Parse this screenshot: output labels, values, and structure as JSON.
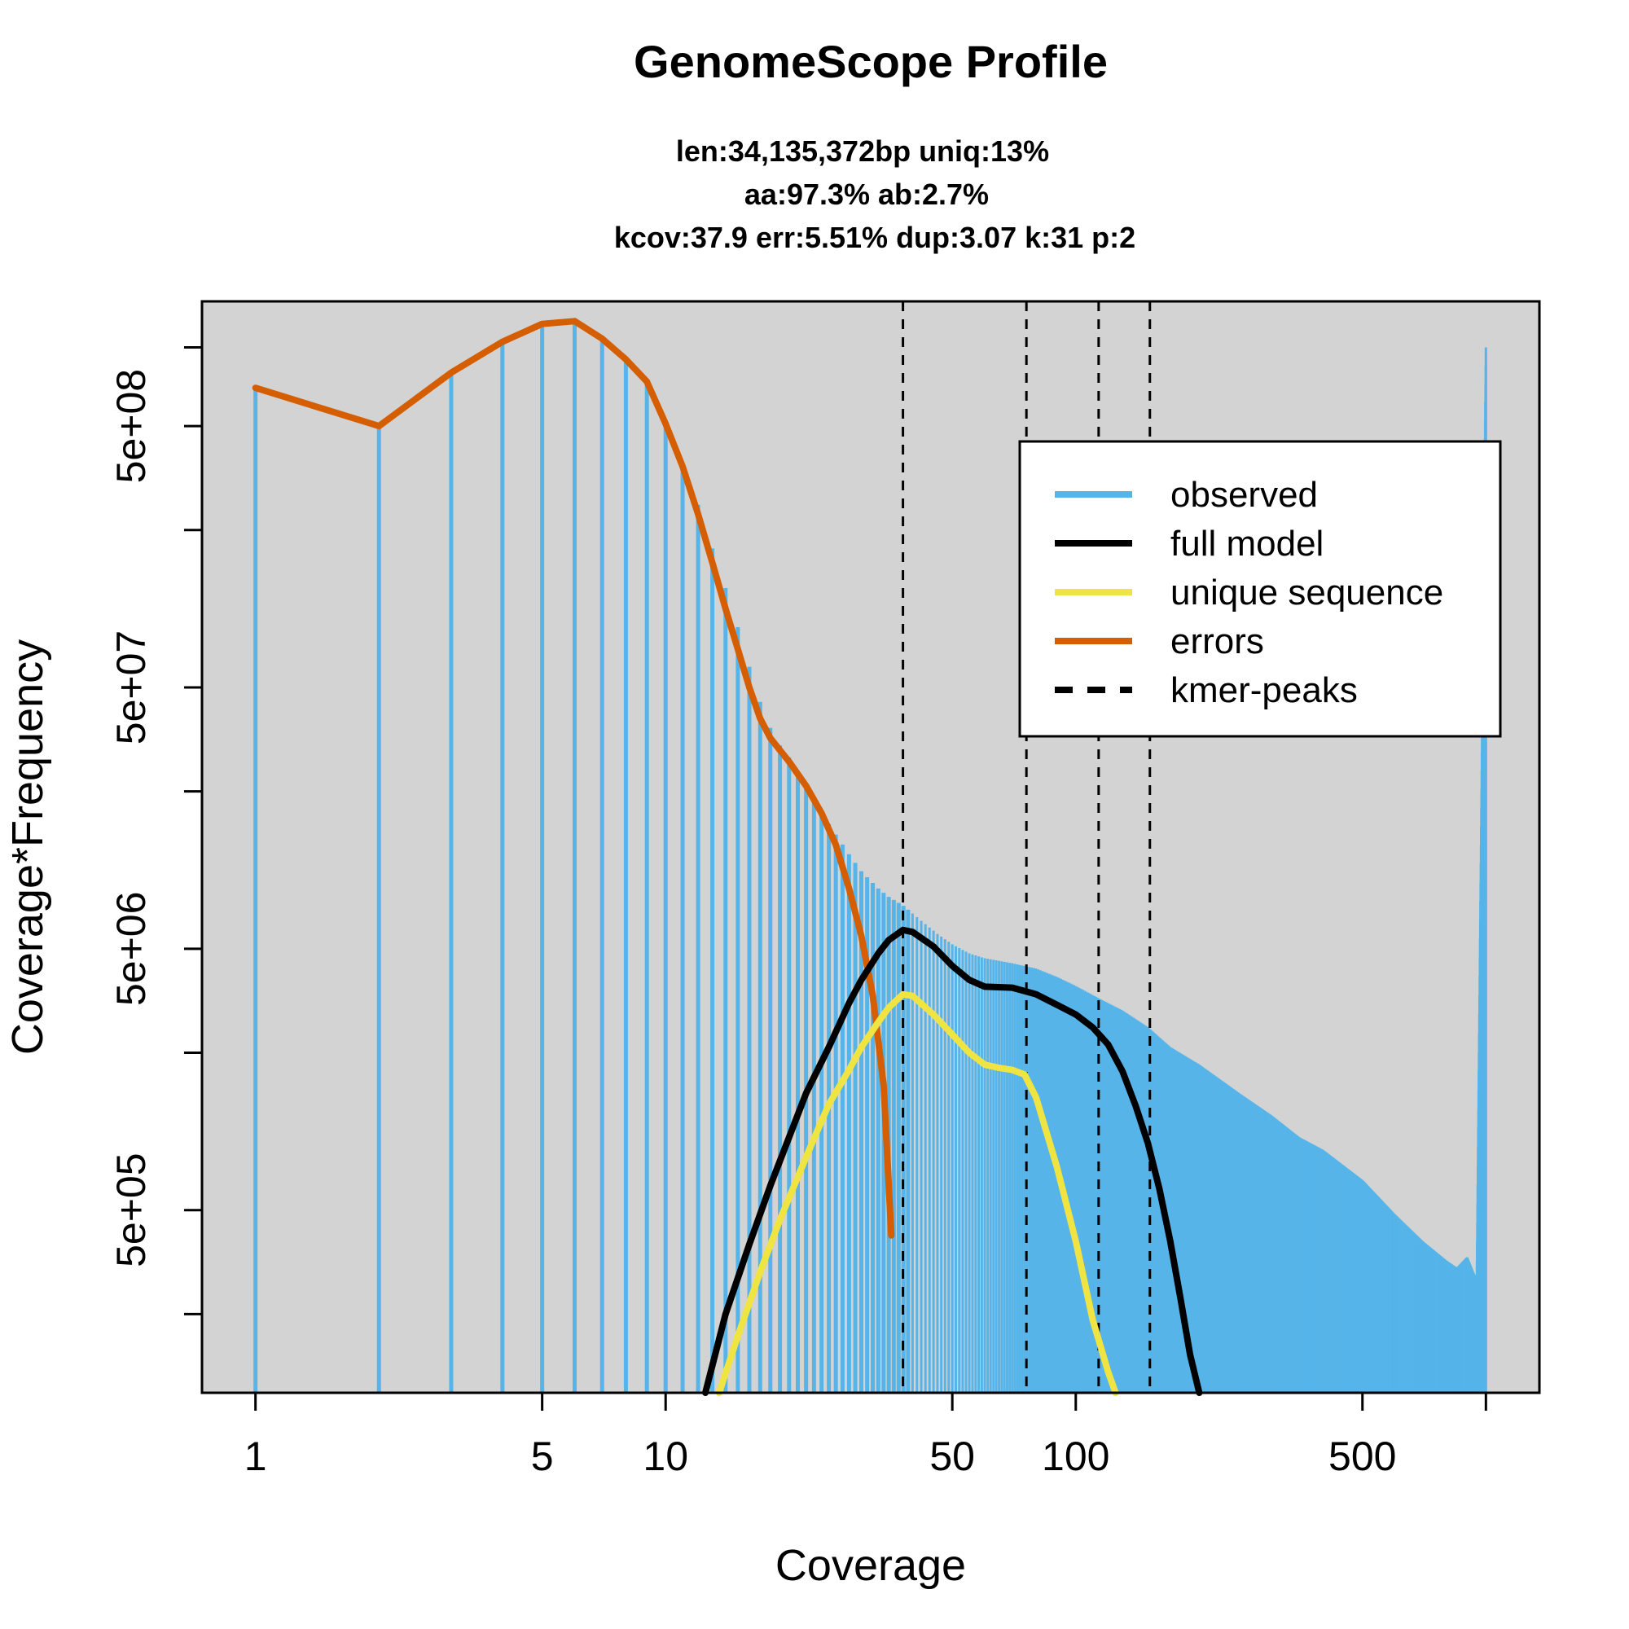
{
  "chart_data": {
    "type": "area",
    "title": "GenomeScope Profile",
    "subtitle_lines": [
      "len:34,135,372bp uniq:13%",
      "aa:97.3% ab:2.7%",
      "kcov:37.9 err:5.51%  dup:3.07  k:31 p:2"
    ],
    "xlabel": "Coverage",
    "ylabel": "Coverage*Frequency",
    "x_scale": "log",
    "y_scale": "log",
    "xlim": [
      1,
      1000
    ],
    "ylim": [
      100000,
      1500000000
    ],
    "x_ticks": [
      1,
      5,
      10,
      50,
      100,
      500,
      1000
    ],
    "x_tick_labels": [
      "1",
      "5",
      "10",
      "50",
      "100",
      "500",
      ""
    ],
    "y_ticks": [
      200000,
      500000,
      2000000,
      5000000,
      20000000,
      50000000,
      200000000,
      500000000,
      1000000000
    ],
    "y_tick_labels": [
      "",
      "5e+05",
      "",
      "5e+06",
      "",
      "5e+07",
      "",
      "5e+08",
      ""
    ],
    "colors": {
      "observed": "#56b4e9",
      "full_model": "#000000",
      "unique_sequence": "#f0e442",
      "errors": "#d55e00",
      "kmer_peaks": "#000000",
      "plot_background": "#d3d3d3"
    },
    "kmer_peaks": [
      37.9,
      75.8,
      113.7,
      151.6
    ],
    "observed": {
      "name": "observed",
      "points": [
        [
          1,
          700000000
        ],
        [
          2,
          500000000
        ],
        [
          3,
          800000000
        ],
        [
          4,
          1050000000
        ],
        [
          5,
          1230000000
        ],
        [
          6,
          1260000000
        ],
        [
          7,
          1080000000
        ],
        [
          8,
          900000000
        ],
        [
          9,
          740000000
        ],
        [
          10,
          510000000
        ],
        [
          11,
          360000000
        ],
        [
          12,
          250000000
        ],
        [
          13,
          170000000
        ],
        [
          14,
          120000000
        ],
        [
          15,
          85000000
        ],
        [
          16,
          60000000
        ],
        [
          17,
          44000000
        ],
        [
          18,
          35000000
        ],
        [
          19,
          30000000
        ],
        [
          20,
          27000000
        ],
        [
          22,
          21000000
        ],
        [
          25,
          15000000
        ],
        [
          28,
          11500000
        ],
        [
          30,
          9900000
        ],
        [
          33,
          8500000
        ],
        [
          35,
          7900000
        ],
        [
          38,
          7300000
        ],
        [
          42,
          6400000
        ],
        [
          46,
          5700000
        ],
        [
          50,
          5200000
        ],
        [
          55,
          4800000
        ],
        [
          60,
          4600000
        ],
        [
          70,
          4400000
        ],
        [
          80,
          4200000
        ],
        [
          90,
          3900000
        ],
        [
          100,
          3600000
        ],
        [
          115,
          3200000
        ],
        [
          130,
          2900000
        ],
        [
          150,
          2500000
        ],
        [
          170,
          2100000
        ],
        [
          200,
          1800000
        ],
        [
          250,
          1400000
        ],
        [
          300,
          1150000
        ],
        [
          350,
          950000
        ],
        [
          400,
          850000
        ],
        [
          500,
          650000
        ],
        [
          600,
          480000
        ],
        [
          700,
          380000
        ],
        [
          800,
          320000
        ],
        [
          850,
          300000
        ],
        [
          900,
          330000
        ],
        [
          930,
          290000
        ],
        [
          950,
          270000
        ],
        [
          1000,
          1000000000
        ]
      ]
    },
    "full_model": {
      "name": "full model",
      "points": [
        [
          12.5,
          100000
        ],
        [
          14,
          200000
        ],
        [
          16,
          370000
        ],
        [
          18,
          620000
        ],
        [
          20,
          950000
        ],
        [
          22,
          1400000
        ],
        [
          25,
          2100000
        ],
        [
          28,
          3100000
        ],
        [
          30,
          3800000
        ],
        [
          33,
          4800000
        ],
        [
          35,
          5400000
        ],
        [
          37.9,
          5900000
        ],
        [
          40,
          5800000
        ],
        [
          45,
          5100000
        ],
        [
          50,
          4300000
        ],
        [
          55,
          3800000
        ],
        [
          60,
          3580000
        ],
        [
          70,
          3550000
        ],
        [
          80,
          3350000
        ],
        [
          90,
          3050000
        ],
        [
          100,
          2800000
        ],
        [
          110,
          2500000
        ],
        [
          120,
          2150000
        ],
        [
          130,
          1700000
        ],
        [
          140,
          1250000
        ],
        [
          150,
          900000
        ],
        [
          160,
          600000
        ],
        [
          170,
          380000
        ],
        [
          180,
          230000
        ],
        [
          190,
          140000
        ],
        [
          200,
          100000
        ]
      ]
    },
    "unique_sequence": {
      "name": "unique sequence",
      "points": [
        [
          13.5,
          100000
        ],
        [
          15,
          165000
        ],
        [
          17,
          290000
        ],
        [
          19,
          460000
        ],
        [
          21,
          670000
        ],
        [
          23,
          940000
        ],
        [
          25,
          1270000
        ],
        [
          28,
          1720000
        ],
        [
          30,
          2100000
        ],
        [
          33,
          2620000
        ],
        [
          35,
          2980000
        ],
        [
          37.9,
          3350000
        ],
        [
          40,
          3300000
        ],
        [
          45,
          2800000
        ],
        [
          50,
          2350000
        ],
        [
          55,
          2000000
        ],
        [
          60,
          1800000
        ],
        [
          65,
          1750000
        ],
        [
          70,
          1720000
        ],
        [
          75,
          1650000
        ],
        [
          80,
          1350000
        ],
        [
          90,
          730000
        ],
        [
          100,
          380000
        ],
        [
          110,
          190000
        ],
        [
          120,
          120000
        ],
        [
          125,
          100000
        ]
      ]
    },
    "errors": {
      "name": "errors",
      "points": [
        [
          1,
          700000000
        ],
        [
          2,
          500000000
        ],
        [
          3,
          800000000
        ],
        [
          4,
          1050000000
        ],
        [
          5,
          1230000000
        ],
        [
          6,
          1260000000
        ],
        [
          7,
          1080000000
        ],
        [
          8,
          900000000
        ],
        [
          9,
          740000000
        ],
        [
          10,
          510000000
        ],
        [
          11,
          350000000
        ],
        [
          12,
          230000000
        ],
        [
          13,
          150000000
        ],
        [
          14,
          100000000
        ],
        [
          15,
          70000000
        ],
        [
          16,
          50000000
        ],
        [
          17,
          38000000
        ],
        [
          18,
          32000000
        ],
        [
          20,
          26000000
        ],
        [
          22,
          21000000
        ],
        [
          24,
          16500000
        ],
        [
          26,
          12500000
        ],
        [
          28,
          8500000
        ],
        [
          30,
          5600000
        ],
        [
          32,
          3300000
        ],
        [
          34,
          1500000
        ],
        [
          35.5,
          400000
        ]
      ]
    },
    "legend": {
      "placement": "top-right",
      "entries": [
        {
          "label": "observed",
          "style": "solid",
          "color": "#56b4e9"
        },
        {
          "label": "full model",
          "style": "solid",
          "color": "#000000"
        },
        {
          "label": "unique sequence",
          "style": "solid",
          "color": "#f0e442"
        },
        {
          "label": "errors",
          "style": "solid",
          "color": "#d55e00"
        },
        {
          "label": "kmer-peaks",
          "style": "dashed",
          "color": "#000000"
        }
      ]
    }
  }
}
